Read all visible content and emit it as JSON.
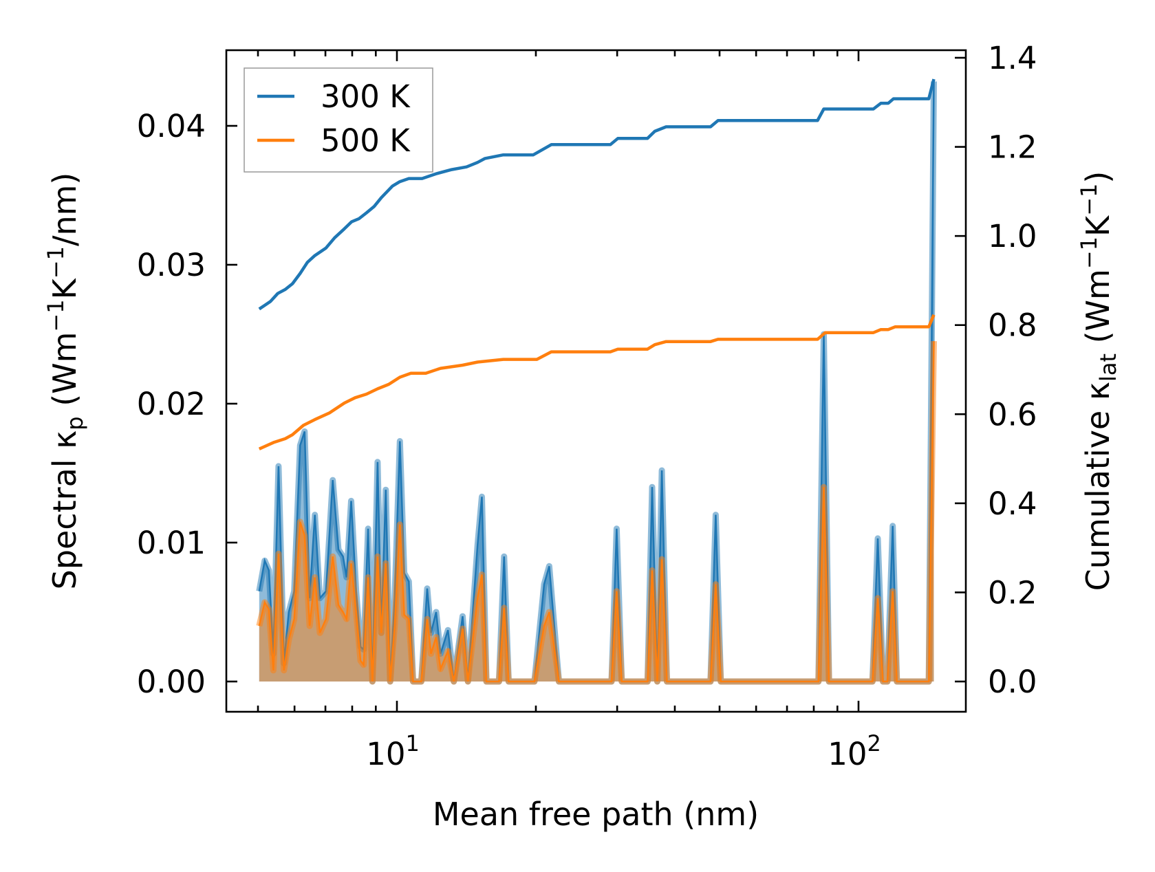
{
  "chart_data": {
    "type": "line",
    "xlabel": "Mean free path (nm)",
    "xscale": "log",
    "xlim": [
      4.4,
      175
    ],
    "ylim_left": [
      -0.0022,
      0.0455
    ],
    "ylim_right": [
      -0.066,
      1.365
    ],
    "grid": false,
    "legend_position": "top-left",
    "ylabel_left": {
      "a": "Spectral κ",
      "sub": "p",
      "b": " (Wm",
      "sup1": "−1",
      "c": "K",
      "sup2": "−1",
      "d": "/nm)"
    },
    "ylabel_right": {
      "a": "Cumulative κ",
      "sub": "lat",
      "b": " (Wm",
      "sup1": "−1",
      "c": "K",
      "sup2": "−1",
      "d": ")"
    },
    "x_ticks": [
      {
        "value": 10,
        "base": "10",
        "exp": "1"
      },
      {
        "value": 100,
        "base": "10",
        "exp": "2"
      }
    ],
    "y_ticks_left": [
      {
        "value": 0.0,
        "label": "0.00"
      },
      {
        "value": 0.01,
        "label": "0.01"
      },
      {
        "value": 0.02,
        "label": "0.02"
      },
      {
        "value": 0.03,
        "label": "0.03"
      },
      {
        "value": 0.04,
        "label": "0.04"
      }
    ],
    "y_ticks_right": [
      {
        "value": 0.0,
        "label": "0.0"
      },
      {
        "value": 0.2,
        "label": "0.2"
      },
      {
        "value": 0.4,
        "label": "0.4"
      },
      {
        "value": 0.6,
        "label": "0.6"
      },
      {
        "value": 0.8,
        "label": "0.8"
      },
      {
        "value": 1.0,
        "label": "1.0"
      },
      {
        "value": 1.2,
        "label": "1.2"
      },
      {
        "value": 1.4,
        "label": "1.4"
      }
    ],
    "colors": {
      "300K": "#1f77b4",
      "500K": "#ff7f0e"
    },
    "spectral": {
      "x": [
        5.03,
        5.17,
        5.28,
        5.4,
        5.54,
        5.69,
        5.83,
        5.99,
        6.17,
        6.31,
        6.47,
        6.64,
        6.81,
        7.02,
        7.26,
        7.47,
        7.64,
        7.78,
        7.96,
        8.16,
        8.34,
        8.47,
        8.66,
        8.85,
        9.08,
        9.25,
        9.46,
        9.67,
        9.89,
        10.15,
        10.37,
        10.61,
        10.84,
        11.29,
        11.63,
        11.85,
        12.16,
        12.43,
        12.9,
        13.28,
        13.88,
        14.25,
        14.95,
        15.28,
        15.63,
        16.64,
        17.07,
        17.46,
        19.86,
        20.84,
        21.38,
        22.44,
        29.17,
        29.92,
        30.69,
        34.92,
        35.72,
        36.65,
        37.49,
        38.46,
        47.8,
        49.05,
        50.3,
        81.9,
        84.1,
        86.3,
        107.2,
        110.1,
        113,
        115.5,
        118.6,
        121.1,
        142,
        145.6
      ],
      "series": [
        {
          "name": "300 K",
          "values": [
            0.0065,
            0.0087,
            0.008,
            0.002,
            0.0155,
            0.0013,
            0.005,
            0.0065,
            0.017,
            0.018,
            0.006,
            0.012,
            0.006,
            0.0065,
            0.0145,
            0.0095,
            0.009,
            0.0075,
            0.013,
            0.0065,
            0.0025,
            0.0023,
            0.011,
            0,
            0.0158,
            0.0035,
            0.0138,
            0,
            0.006,
            0.0173,
            0.0078,
            0.0072,
            0,
            0,
            0.0067,
            0.0035,
            0.005,
            0.002,
            0.0037,
            0,
            0.0047,
            0,
            0.0098,
            0.0133,
            0,
            0,
            0.009,
            0,
            0,
            0.007,
            0.0083,
            0,
            0,
            0.011,
            0,
            0,
            0.014,
            0,
            0.0152,
            0,
            0,
            0.012,
            0,
            0,
            0.025,
            0,
            0,
            0.0103,
            0,
            0,
            0.0112,
            0,
            0,
            0.0432
          ]
        },
        {
          "name": "500 K",
          "values": [
            0.004,
            0.0057,
            0.0052,
            0.0008,
            0.0092,
            0.0008,
            0.003,
            0.0045,
            0.0115,
            0.0105,
            0.004,
            0.0075,
            0.0035,
            0.0045,
            0.009,
            0.0055,
            0.005,
            0.0045,
            0.0085,
            0.005,
            0.0015,
            0.0012,
            0.0075,
            0,
            0.009,
            0.0035,
            0.0085,
            0,
            0.004,
            0.0113,
            0.0048,
            0.0045,
            0,
            0,
            0.0045,
            0.002,
            0.0032,
            0.0009,
            0.0022,
            0,
            0.0038,
            0,
            0.006,
            0.0077,
            0,
            0,
            0.0053,
            0,
            0,
            0.004,
            0.005,
            0,
            0,
            0.0065,
            0,
            0,
            0.008,
            0,
            0.0088,
            0,
            0,
            0.007,
            0,
            0,
            0.014,
            0,
            0,
            0.006,
            0,
            0,
            0.0065,
            0,
            0,
            0.0245
          ]
        }
      ]
    },
    "cumulative": [
      {
        "name": "300 K",
        "x": [
          5.03,
          5.32,
          5.52,
          5.73,
          5.94,
          6.17,
          6.4,
          6.64,
          7.02,
          7.33,
          7.69,
          7.98,
          8.28,
          8.59,
          8.92,
          9.25,
          9.78,
          10.15,
          10.61,
          11.34,
          12.2,
          13.14,
          14.15,
          14.95,
          15.52,
          17.0,
          19.74,
          21.6,
          29.0,
          30.1,
          34.9,
          36.2,
          38.3,
          47.8,
          49.6,
          81.5,
          84.1,
          107.7,
          111.8,
          116,
          119.1,
          142,
          145.6
        ],
        "values": [
          0.836,
          0.853,
          0.871,
          0.88,
          0.893,
          0.916,
          0.941,
          0.956,
          0.973,
          0.996,
          1.016,
          1.032,
          1.039,
          1.052,
          1.066,
          1.086,
          1.112,
          1.122,
          1.129,
          1.129,
          1.14,
          1.149,
          1.155,
          1.165,
          1.174,
          1.182,
          1.182,
          1.205,
          1.205,
          1.219,
          1.219,
          1.235,
          1.245,
          1.245,
          1.259,
          1.259,
          1.285,
          1.285,
          1.298,
          1.298,
          1.308,
          1.308,
          1.352
        ]
      },
      {
        "name": "500 K",
        "x": [
          5.03,
          5.42,
          5.73,
          5.94,
          6.27,
          6.64,
          7.15,
          7.69,
          8.12,
          8.59,
          9.08,
          9.6,
          10.15,
          10.72,
          11.55,
          12.43,
          13.88,
          14.95,
          17.0,
          20.1,
          21.6,
          29.0,
          30.1,
          34.9,
          36.2,
          38.3,
          47.8,
          49.6,
          81.5,
          84.7,
          107.7,
          111.8,
          116,
          120,
          142,
          145.6
        ],
        "values": [
          0.522,
          0.537,
          0.545,
          0.554,
          0.575,
          0.588,
          0.603,
          0.625,
          0.637,
          0.645,
          0.657,
          0.667,
          0.683,
          0.692,
          0.692,
          0.703,
          0.71,
          0.717,
          0.723,
          0.723,
          0.74,
          0.74,
          0.746,
          0.746,
          0.756,
          0.763,
          0.763,
          0.768,
          0.768,
          0.783,
          0.783,
          0.79,
          0.79,
          0.796,
          0.796,
          0.823
        ]
      }
    ],
    "legend": [
      "300 K",
      "500 K"
    ]
  }
}
